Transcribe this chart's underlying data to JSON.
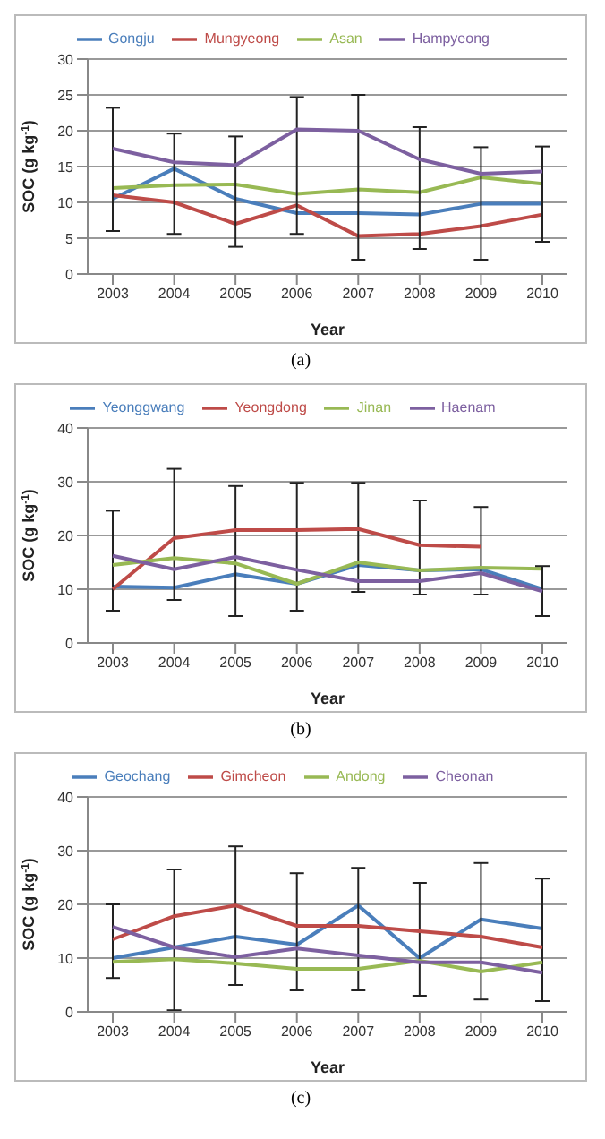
{
  "chart_data": [
    {
      "type": "line",
      "categories": [
        "2003",
        "2004",
        "2005",
        "2006",
        "2007",
        "2008",
        "2009",
        "2010"
      ],
      "xlabel": "Year",
      "ylabel": "SOC (g kg$^{-1}$)",
      "ylim": [
        0,
        30
      ],
      "yticks": [
        0,
        5,
        10,
        15,
        20,
        25,
        30
      ],
      "grid": "y",
      "legend": "top",
      "marker": "none",
      "annotations": [
        "(a)"
      ],
      "series": [
        {
          "name": "Gongju",
          "color": "#4a7ebb",
          "values": [
            10.5,
            14.7,
            10.5,
            8.5,
            8.5,
            8.3,
            9.8,
            9.8
          ]
        },
        {
          "name": "Mungyeong",
          "color": "#be4b48",
          "values": [
            11,
            10,
            7,
            9.6,
            5.3,
            5.6,
            6.7,
            8.3
          ]
        },
        {
          "name": "Asan",
          "color": "#98b954",
          "values": [
            12,
            12.4,
            12.5,
            11.2,
            11.8,
            11.4,
            13.5,
            12.6
          ]
        },
        {
          "name": "Hampyeong",
          "color": "#7d60a0",
          "values": [
            17.5,
            15.6,
            15.2,
            20.2,
            20,
            16,
            14,
            14.3
          ],
          "errors": [
            [
              6,
              23.2
            ],
            [
              5.6,
              19.6
            ],
            [
              3.8,
              19.2
            ],
            [
              5.6,
              24.7
            ],
            [
              2,
              25
            ],
            [
              3.5,
              20.5
            ],
            [
              2,
              17.7
            ],
            [
              4.5,
              17.8
            ]
          ]
        }
      ]
    },
    {
      "type": "line",
      "categories": [
        "2003",
        "2004",
        "2005",
        "2006",
        "2007",
        "2008",
        "2009",
        "2010"
      ],
      "xlabel": "Year",
      "ylabel": "SOC (g kg$^{-1}$)",
      "ylim": [
        0,
        40
      ],
      "yticks": [
        0,
        10,
        20,
        30,
        40
      ],
      "grid": "y",
      "legend": "top",
      "marker": "none",
      "annotations": [
        "(b)"
      ],
      "series": [
        {
          "name": "Yeonggwang",
          "color": "#4a7ebb",
          "values": [
            10.5,
            10.3,
            12.8,
            11,
            14.5,
            13.5,
            13.7,
            10
          ]
        },
        {
          "name": "Yeongdong",
          "color": "#be4b48",
          "values": [
            10,
            19.5,
            21,
            21,
            21.2,
            18.2,
            17.9,
            null
          ],
          "errors": [
            [
              6,
              24.6
            ],
            [
              8,
              32.4
            ],
            [
              5,
              29.2
            ],
            [
              6,
              29.8
            ],
            [
              9.5,
              29.8
            ],
            [
              9,
              26.5
            ],
            [
              9,
              25.3
            ],
            null
          ]
        },
        {
          "name": "Jinan",
          "color": "#98b954",
          "values": [
            14.5,
            15.8,
            14.8,
            11,
            15,
            13.5,
            14,
            13.8
          ]
        },
        {
          "name": "Haenam",
          "color": "#7d60a0",
          "values": [
            16.2,
            13.7,
            16,
            13.6,
            11.5,
            11.5,
            13,
            9.6
          ],
          "errors": [
            null,
            null,
            null,
            null,
            null,
            null,
            null,
            [
              5,
              14.3
            ]
          ]
        }
      ]
    },
    {
      "type": "line",
      "categories": [
        "2003",
        "2004",
        "2005",
        "2006",
        "2007",
        "2008",
        "2009",
        "2010"
      ],
      "xlabel": "Year",
      "ylabel": "SOC (g kg$^{-1}$)",
      "ylim": [
        0,
        40
      ],
      "yticks": [
        0,
        10,
        20,
        30,
        40
      ],
      "grid": "y",
      "legend": "top",
      "marker": "none",
      "annotations": [
        "(c)"
      ],
      "series": [
        {
          "name": "Geochang",
          "color": "#4a7ebb",
          "values": [
            10,
            12,
            14,
            12.5,
            19.8,
            10,
            17.2,
            15.5
          ]
        },
        {
          "name": "Gimcheon",
          "color": "#be4b48",
          "values": [
            13.5,
            17.8,
            19.8,
            16,
            16,
            15,
            14,
            12
          ],
          "errors": [
            [
              6.3,
              20
            ],
            [
              0.3,
              26.5
            ],
            [
              5,
              30.8
            ],
            [
              4,
              25.8
            ],
            [
              4,
              26.8
            ],
            [
              3,
              24
            ],
            [
              2.3,
              27.7
            ],
            [
              2,
              24.8
            ]
          ]
        },
        {
          "name": "Andong",
          "color": "#98b954",
          "values": [
            9.3,
            9.8,
            9,
            8,
            8,
            9.5,
            7.5,
            9.2
          ]
        },
        {
          "name": "Cheonan",
          "color": "#7d60a0",
          "values": [
            15.8,
            12,
            10.2,
            11.8,
            10.5,
            9.2,
            9.2,
            7.3
          ]
        }
      ]
    }
  ]
}
